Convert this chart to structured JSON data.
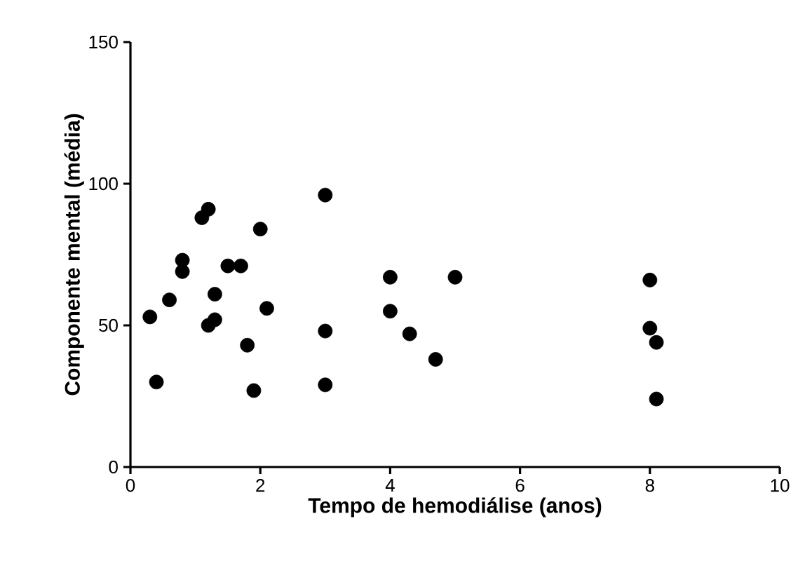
{
  "chart_data": {
    "type": "scatter",
    "xlabel": "Tempo de hemodiálise (anos)",
    "ylabel": "Componente mental (média)",
    "color": "#000000",
    "marker": "circle",
    "grid": false,
    "x": [
      0.3,
      0.4,
      0.6,
      0.8,
      0.8,
      1.1,
      1.2,
      1.2,
      1.3,
      1.3,
      1.5,
      1.7,
      1.8,
      1.9,
      2.0,
      2.1,
      3.0,
      3.0,
      3.0,
      4.0,
      4.0,
      4.3,
      4.7,
      5.0,
      8.0,
      8.0,
      8.1,
      8.1
    ],
    "values": [
      53,
      30,
      59,
      73,
      69,
      88,
      91,
      50,
      52,
      61,
      71,
      71,
      43,
      27,
      84,
      56,
      96,
      48,
      29,
      67,
      55,
      47,
      38,
      67,
      66,
      49,
      44,
      24
    ],
    "xlim": [
      0,
      10
    ],
    "ylim": [
      0,
      150
    ],
    "xticks": [
      0,
      2,
      4,
      6,
      8,
      10
    ],
    "yticks": [
      0,
      50,
      100,
      150
    ]
  }
}
